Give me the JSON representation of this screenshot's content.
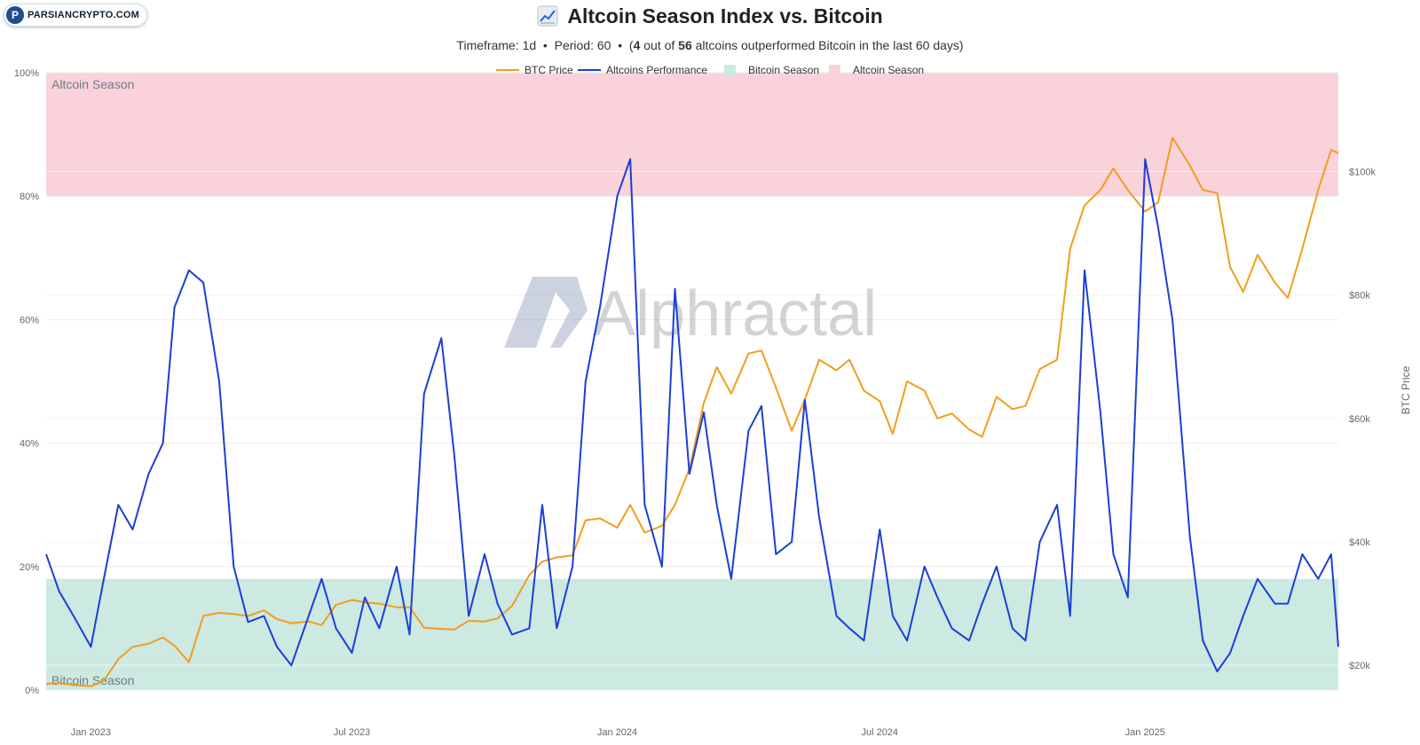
{
  "logo": {
    "text": "PARSIANCRYPTO.COM",
    "icon": "p-logo-icon"
  },
  "header": {
    "title": "Altcoin Season Index vs. Bitcoin",
    "icon": "line-chart-icon",
    "subtitle_prefix": "Timeframe: 1d  •  Period: 60  •  (",
    "outperformed": "4",
    "subtitle_middle": " out of ",
    "total": "56",
    "subtitle_suffix": " altcoins outperformed Bitcoin in the last 60 days)"
  },
  "watermark": {
    "text": "Alphractal"
  },
  "colors": {
    "btc": "#f29d1e",
    "alts": "#1a3fd6",
    "bitcoin_season": "#cce9e2",
    "altcoin_season": "#f9d2da",
    "grid": "#ececec"
  },
  "chart_data": {
    "type": "line",
    "title": "Altcoin Season Index vs. Bitcoin",
    "x_range": [
      "2022-12-01",
      "2025-05-15"
    ],
    "x_ticks": [
      {
        "date": "2023-01-01",
        "label": "Jan 2023"
      },
      {
        "date": "2023-07-01",
        "label": "Jul 2023"
      },
      {
        "date": "2024-01-01",
        "label": "Jan 2024"
      },
      {
        "date": "2024-07-01",
        "label": "Jul 2024"
      },
      {
        "date": "2025-01-01",
        "label": "Jan 2025"
      }
    ],
    "y_left": {
      "ylim": [
        0,
        100
      ],
      "ticks": [
        "0%",
        "20%",
        "40%",
        "60%",
        "80%",
        "100%"
      ]
    },
    "y_right": {
      "label": "BTC Price",
      "ylim": [
        16000,
        116000
      ],
      "tick_values": [
        20000,
        40000,
        60000,
        80000,
        100000
      ],
      "ticks": [
        "$20k",
        "$40k",
        "$60k",
        "$80k",
        "$100k"
      ]
    },
    "legend": {
      "placement": "top-center",
      "items": [
        {
          "label": "BTC Price",
          "kind": "line",
          "color": "#f29d1e"
        },
        {
          "label": "Altcoins Performance",
          "kind": "line",
          "color": "#1a3fd6"
        },
        {
          "label": "Bitcoin Season",
          "kind": "box",
          "color": "#cce9e2"
        },
        {
          "label": "Altcoin Season",
          "kind": "box",
          "color": "#f9d2da"
        }
      ]
    },
    "bands": [
      {
        "name": "Bitcoin Season",
        "from": 0,
        "to": 18,
        "color": "#cce9e2"
      },
      {
        "name": "Altcoin Season",
        "from": 80,
        "to": 100,
        "color": "#f9d2da"
      }
    ],
    "series": [
      {
        "name": "Altcoins Performance",
        "axis": "left",
        "color": "#1a3fd6",
        "x": [
          "2022-12-01",
          "2022-12-10",
          "2022-12-20",
          "2023-01-01",
          "2023-01-10",
          "2023-01-20",
          "2023-01-30",
          "2023-02-10",
          "2023-02-20",
          "2023-02-28",
          "2023-03-10",
          "2023-03-20",
          "2023-03-31",
          "2023-04-10",
          "2023-04-20",
          "2023-05-01",
          "2023-05-10",
          "2023-05-20",
          "2023-06-01",
          "2023-06-10",
          "2023-06-20",
          "2023-07-01",
          "2023-07-10",
          "2023-07-20",
          "2023-08-01",
          "2023-08-10",
          "2023-08-20",
          "2023-09-01",
          "2023-09-10",
          "2023-09-20",
          "2023-10-01",
          "2023-10-10",
          "2023-10-20",
          "2023-11-01",
          "2023-11-10",
          "2023-11-20",
          "2023-12-01",
          "2023-12-10",
          "2023-12-20",
          "2024-01-01",
          "2024-01-10",
          "2024-01-20",
          "2024-02-01",
          "2024-02-10",
          "2024-02-20",
          "2024-03-01",
          "2024-03-10",
          "2024-03-20",
          "2024-04-01",
          "2024-04-10",
          "2024-04-20",
          "2024-05-01",
          "2024-05-10",
          "2024-05-20",
          "2024-06-01",
          "2024-06-10",
          "2024-06-20",
          "2024-07-01",
          "2024-07-10",
          "2024-07-20",
          "2024-08-01",
          "2024-08-10",
          "2024-08-20",
          "2024-09-01",
          "2024-09-10",
          "2024-09-20",
          "2024-10-01",
          "2024-10-10",
          "2024-10-20",
          "2024-11-01",
          "2024-11-10",
          "2024-11-20",
          "2024-12-01",
          "2024-12-10",
          "2024-12-20",
          "2025-01-01",
          "2025-01-10",
          "2025-01-20",
          "2025-02-01",
          "2025-02-10",
          "2025-02-20",
          "2025-03-01",
          "2025-03-10",
          "2025-03-20",
          "2025-04-01",
          "2025-04-10",
          "2025-04-20",
          "2025-05-01",
          "2025-05-10",
          "2025-05-15"
        ],
        "values": [
          22,
          16,
          12,
          7,
          18,
          30,
          26,
          35,
          40,
          62,
          68,
          66,
          50,
          20,
          11,
          12,
          7,
          4,
          12,
          18,
          10,
          6,
          15,
          10,
          20,
          9,
          48,
          57,
          38,
          12,
          22,
          14,
          9,
          10,
          30,
          10,
          20,
          50,
          62,
          80,
          86,
          30,
          20,
          65,
          35,
          45,
          30,
          18,
          42,
          46,
          22,
          24,
          47,
          28,
          12,
          10,
          8,
          26,
          12,
          8,
          20,
          15,
          10,
          8,
          14,
          20,
          10,
          8,
          24,
          30,
          12,
          68,
          45,
          22,
          15,
          86,
          75,
          60,
          25,
          8,
          3,
          6,
          12,
          18,
          14,
          14,
          22,
          18,
          22,
          7
        ]
      },
      {
        "name": "BTC Price",
        "axis": "right",
        "color": "#f29d1e",
        "x": [
          "2022-12-01",
          "2022-12-10",
          "2022-12-20",
          "2023-01-01",
          "2023-01-10",
          "2023-01-20",
          "2023-01-30",
          "2023-02-10",
          "2023-02-20",
          "2023-02-28",
          "2023-03-10",
          "2023-03-20",
          "2023-03-31",
          "2023-04-10",
          "2023-04-20",
          "2023-05-01",
          "2023-05-10",
          "2023-05-20",
          "2023-06-01",
          "2023-06-10",
          "2023-06-20",
          "2023-07-01",
          "2023-07-10",
          "2023-07-20",
          "2023-08-01",
          "2023-08-10",
          "2023-08-20",
          "2023-09-01",
          "2023-09-10",
          "2023-09-20",
          "2023-10-01",
          "2023-10-10",
          "2023-10-20",
          "2023-11-01",
          "2023-11-10",
          "2023-11-20",
          "2023-12-01",
          "2023-12-10",
          "2023-12-20",
          "2024-01-01",
          "2024-01-10",
          "2024-01-20",
          "2024-02-01",
          "2024-02-10",
          "2024-02-20",
          "2024-03-01",
          "2024-03-10",
          "2024-03-20",
          "2024-04-01",
          "2024-04-10",
          "2024-04-20",
          "2024-05-01",
          "2024-05-10",
          "2024-05-20",
          "2024-06-01",
          "2024-06-10",
          "2024-06-20",
          "2024-07-01",
          "2024-07-10",
          "2024-07-20",
          "2024-08-01",
          "2024-08-10",
          "2024-08-20",
          "2024-09-01",
          "2024-09-10",
          "2024-09-20",
          "2024-10-01",
          "2024-10-10",
          "2024-10-20",
          "2024-11-01",
          "2024-11-10",
          "2024-11-20",
          "2024-12-01",
          "2024-12-10",
          "2024-12-20",
          "2025-01-01",
          "2025-01-10",
          "2025-01-20",
          "2025-02-01",
          "2025-02-10",
          "2025-02-20",
          "2025-03-01",
          "2025-03-10",
          "2025-03-20",
          "2025-04-01",
          "2025-04-10",
          "2025-04-20",
          "2025-05-01",
          "2025-05-10",
          "2025-05-15"
        ],
        "values": [
          17000,
          17100,
          16800,
          16600,
          17500,
          21000,
          23000,
          23500,
          24500,
          23200,
          20500,
          28000,
          28500,
          28300,
          28000,
          28900,
          27500,
          26800,
          27100,
          26500,
          29800,
          30600,
          30200,
          30000,
          29400,
          29400,
          26100,
          25900,
          25800,
          27200,
          27100,
          27600,
          29600,
          34600,
          36800,
          37500,
          37800,
          43500,
          43800,
          42300,
          46000,
          41500,
          42600,
          46000,
          51800,
          62500,
          68300,
          64000,
          70500,
          71000,
          65000,
          58000,
          63000,
          69500,
          67800,
          69500,
          64500,
          62800,
          57500,
          66000,
          64500,
          60000,
          60800,
          58200,
          57000,
          63500,
          61500,
          62000,
          68000,
          69500,
          87500,
          94500,
          97000,
          100500,
          97000,
          93500,
          95000,
          105500,
          101000,
          97000,
          96500,
          84500,
          80500,
          86500,
          82000,
          79500,
          87500,
          97000,
          103500,
          103000
        ]
      }
    ]
  }
}
